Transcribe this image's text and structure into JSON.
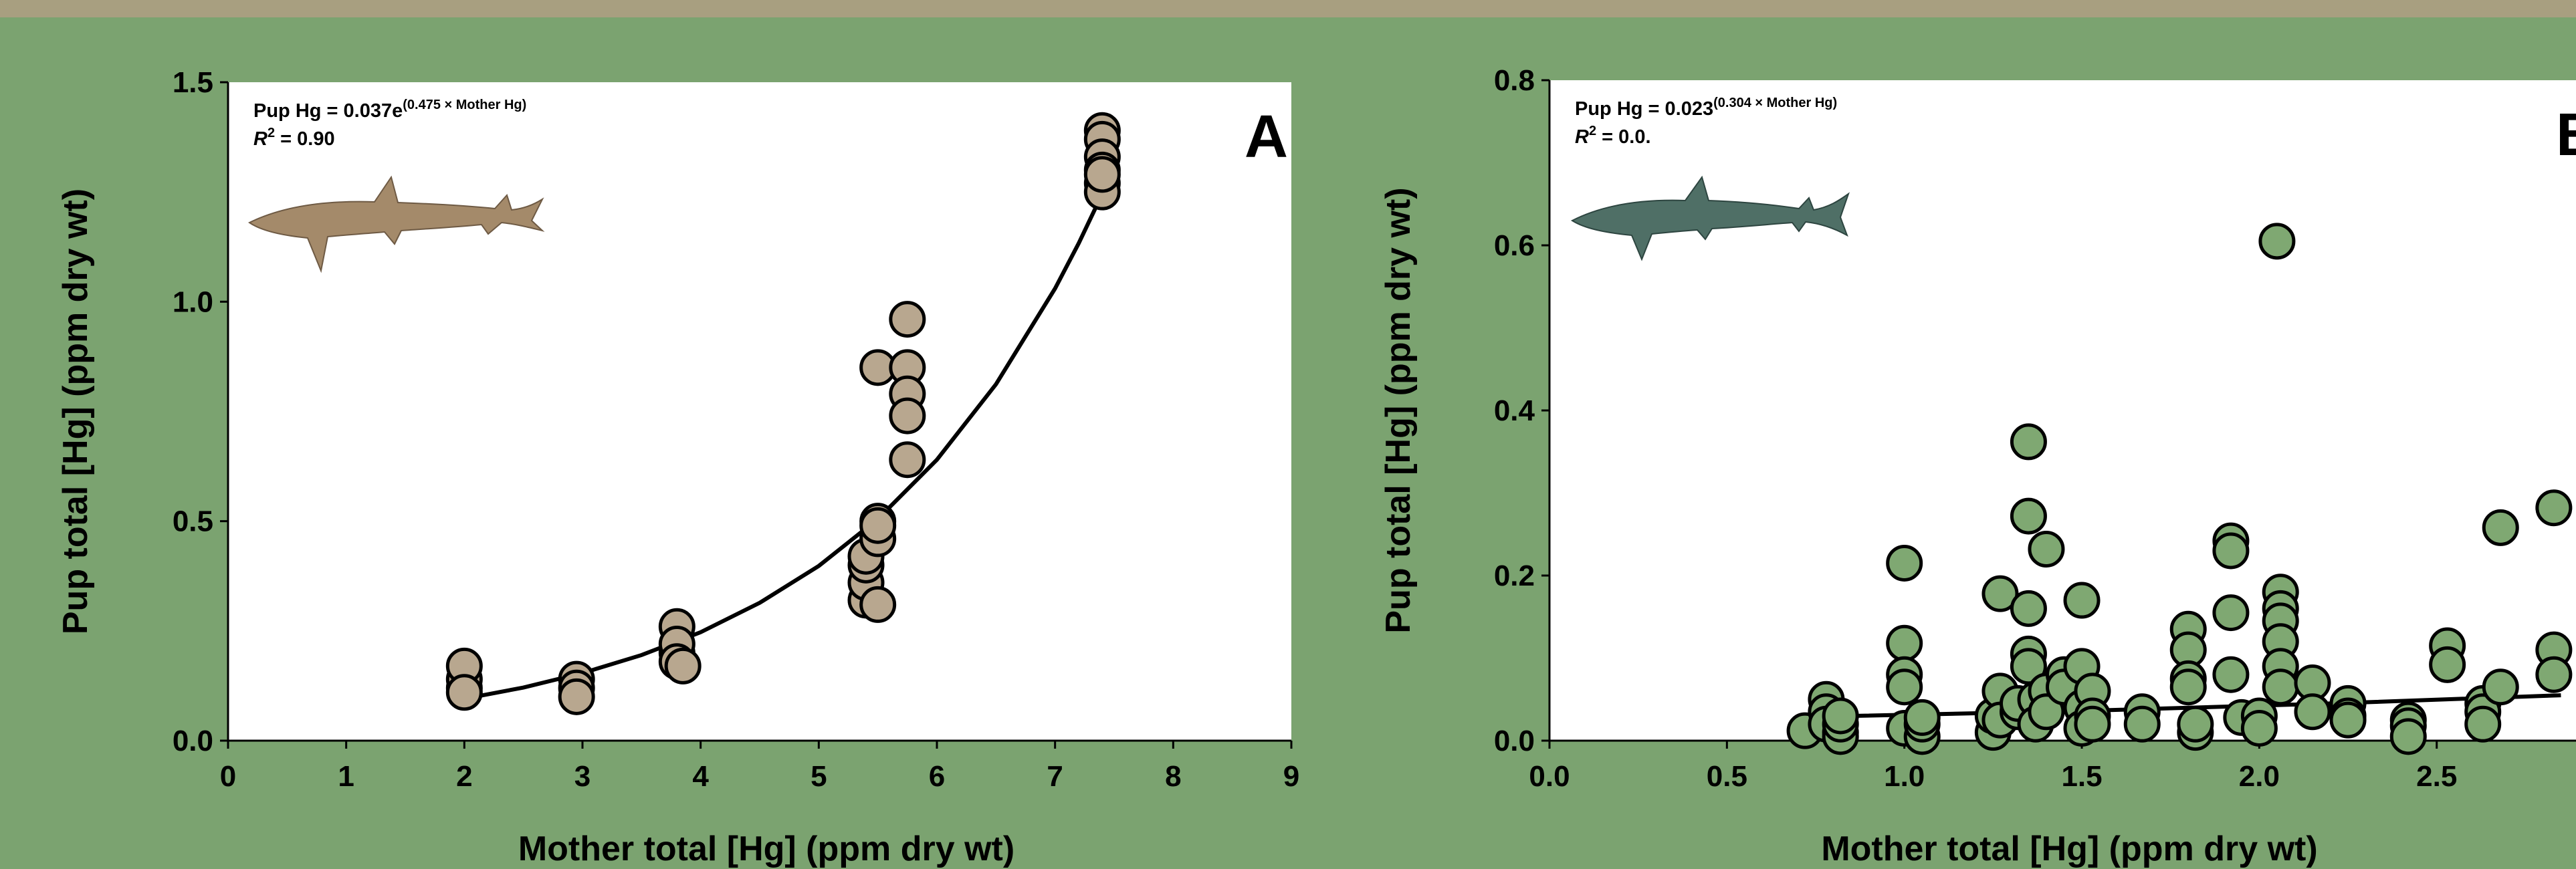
{
  "chart_data": [
    {
      "type": "scatter",
      "x_label": "Mother total [Hg] (ppm dry wt)",
      "y_label": "Pup total [Hg] (ppm dry wt)",
      "equation": "Pup Hg = 0.037e",
      "equation_exponent": "(0.475 × Mother Hg)",
      "r2_symbol": "R",
      "r2_exponent": "2",
      "r2_text": " = 0.90",
      "panel_label": "A",
      "color": "#b8a78f",
      "x": [
        2,
        2,
        2,
        2,
        2.95,
        2.95,
        2.95,
        3.8,
        3.8,
        3.8,
        3.8,
        3.85,
        5.4,
        5.4,
        5.4,
        5.4,
        5.5,
        5.5,
        5.5,
        5.5,
        5.5,
        5.75,
        5.75,
        5.75,
        5.75,
        5.75,
        7.4,
        7.4,
        7.4,
        7.4,
        7.4,
        7.4,
        7.4
      ],
      "values": [
        0.12,
        0.14,
        0.17,
        0.11,
        0.14,
        0.12,
        0.1,
        0.26,
        0.2,
        0.22,
        0.18,
        0.17,
        0.32,
        0.36,
        0.4,
        0.42,
        0.85,
        0.5,
        0.46,
        0.31,
        0.49,
        0.96,
        0.85,
        0.79,
        0.74,
        0.64,
        1.39,
        1.37,
        1.33,
        1.3,
        1.27,
        1.25,
        1.29
      ],
      "fit": {
        "color": "#000000",
        "x": [
          2,
          2.5,
          3,
          3.5,
          4,
          4.5,
          5,
          5.5,
          6,
          6.5,
          7,
          7.2,
          7.4
        ],
        "values": [
          0.0955,
          0.121,
          0.154,
          0.195,
          0.247,
          0.314,
          0.398,
          0.505,
          0.64,
          0.812,
          1.03,
          1.133,
          1.246
        ]
      },
      "xlim": [
        0,
        9
      ],
      "xticks": [
        0,
        1,
        2,
        3,
        4,
        5,
        6,
        7,
        8,
        9
      ],
      "ylim": [
        0,
        1.5
      ],
      "yticks": [
        {
          "value": 0,
          "label": "0.0"
        },
        0.5,
        {
          "value": 1,
          "label": "1.0"
        },
        1.5
      ]
    },
    {
      "type": "scatter",
      "x_label": "Mother total [Hg] (ppm dry wt)",
      "y_label": "Pup total [Hg] (ppm dry wt)",
      "equation": "Pup Hg = 0.023",
      "equation_exponent": "(0.304 × Mother Hg)",
      "r2_symbol": "R",
      "r2_exponent": "2",
      "r2_text": " = 0.0.",
      "panel_label": "B",
      "color": "#7fa872",
      "x": [
        0.72,
        0.78,
        0.78,
        0.78,
        0.82,
        0.82,
        0.82,
        0.82,
        1.0,
        1.0,
        1.0,
        1.0,
        1.0,
        1.05,
        1.05,
        1.05,
        1.25,
        1.25,
        1.27,
        1.27,
        1.27,
        1.32,
        1.32,
        1.35,
        1.35,
        1.35,
        1.35,
        1.35,
        1.37,
        1.37,
        1.4,
        1.4,
        1.4,
        1.45,
        1.45,
        1.5,
        1.5,
        1.5,
        1.5,
        1.53,
        1.53,
        1.53,
        1.67,
        1.67,
        1.8,
        1.8,
        1.8,
        1.8,
        1.82,
        1.82,
        1.92,
        1.92,
        1.92,
        1.92,
        1.95,
        2.05,
        2.06,
        2.06,
        2.06,
        2.06,
        2.06,
        2.06,
        2.0,
        2.0,
        2.15,
        2.15,
        2.25,
        2.25,
        2.25,
        2.42,
        2.42,
        2.42,
        2.53,
        2.53,
        2.63,
        2.63,
        2.63,
        2.68,
        2.68,
        2.83,
        2.83,
        2.83
      ],
      "values": [
        0.012,
        0.05,
        0.035,
        0.02,
        0.01,
        0.005,
        0.02,
        0.03,
        0.215,
        0.118,
        0.08,
        0.065,
        0.015,
        0.005,
        0.02,
        0.028,
        0.01,
        0.03,
        0.178,
        0.06,
        0.025,
        0.035,
        0.045,
        0.362,
        0.272,
        0.16,
        0.105,
        0.09,
        0.05,
        0.02,
        0.232,
        0.06,
        0.035,
        0.08,
        0.065,
        0.17,
        0.09,
        0.04,
        0.015,
        0.06,
        0.03,
        0.02,
        0.035,
        0.02,
        0.135,
        0.11,
        0.075,
        0.065,
        0.01,
        0.02,
        0.242,
        0.23,
        0.155,
        0.08,
        0.028,
        0.605,
        0.18,
        0.16,
        0.145,
        0.12,
        0.09,
        0.065,
        0.03,
        0.015,
        0.07,
        0.035,
        0.045,
        0.03,
        0.025,
        0.025,
        0.018,
        0.005,
        0.115,
        0.092,
        0.045,
        0.035,
        0.02,
        0.258,
        0.065,
        0.282,
        0.11,
        0.08
      ],
      "fit": {
        "color": "#000000",
        "x": [
          0.75,
          1.5,
          2.2,
          2.85
        ],
        "values": [
          0.029,
          0.036,
          0.045,
          0.055
        ]
      },
      "xlim": [
        0,
        2.9
      ],
      "xticks": [
        {
          "value": 0,
          "label": "0.0"
        },
        0.5,
        {
          "value": 1,
          "label": "1.0"
        },
        1.5,
        {
          "value": 2,
          "label": "2.0"
        },
        2.5
      ],
      "ylim": [
        0,
        0.8
      ],
      "yticks": [
        {
          "value": 0,
          "label": "0.0"
        },
        0.2,
        0.4,
        0.6,
        0.8
      ]
    }
  ]
}
